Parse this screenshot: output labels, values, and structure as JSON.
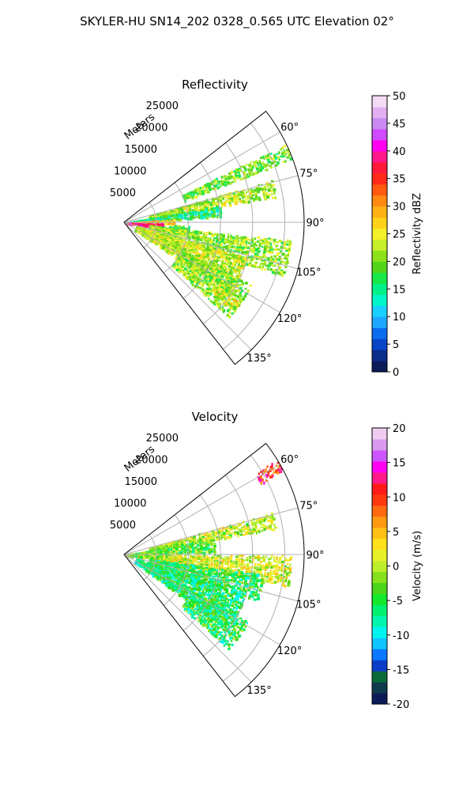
{
  "figure": {
    "title": "SKYLER-HU  SN14_202  0328_0.565 UTC Elevation 02°"
  },
  "colors": {
    "reflectivity_scale": [
      "#0b1b5a",
      "#0a2d8a",
      "#0845c8",
      "#0a6cf0",
      "#1ea7ff",
      "#19d0ff",
      "#00f5c8",
      "#00f08a",
      "#18e848",
      "#52d61a",
      "#8be21a",
      "#c6ee2a",
      "#f4f02a",
      "#ffd21a",
      "#ffb214",
      "#ff8a10",
      "#ff5a10",
      "#ff2a1a",
      "#ff1a3a",
      "#ff1a8a",
      "#ff00f0",
      "#d04aff",
      "#c98af2",
      "#e2aff0",
      "#f5dcf5"
    ],
    "velocity_scale": [
      "#0b1b5a",
      "#0e3a4a",
      "#0a6a3a",
      "#0a3cc8",
      "#0a78ff",
      "#10c4ff",
      "#00f5f0",
      "#00f5b0",
      "#00f070",
      "#14e82a",
      "#4cd41a",
      "#86e21c",
      "#bcee2a",
      "#e8f02a",
      "#ffe01a",
      "#ffc014",
      "#ff9a10",
      "#ff6a10",
      "#ff3a10",
      "#ff1a1a",
      "#ff1a8a",
      "#ff00f0",
      "#cc55ff",
      "#d99aef",
      "#f0cdf0"
    ]
  },
  "chart_data": [
    {
      "type": "heatmap",
      "subtype": "radar-ppi-sector",
      "title": "Reflectivity",
      "radial_label": "Meters",
      "radial_ticks": [
        "5000",
        "10000",
        "15000",
        "20000",
        "25000"
      ],
      "radial_tick_values": [
        5000,
        10000,
        15000,
        20000,
        25000
      ],
      "angle_ticks": [
        "60°",
        "75°",
        "90°",
        "105°",
        "120°",
        "135°"
      ],
      "angle_tick_values": [
        60,
        75,
        90,
        105,
        120,
        135
      ],
      "angle_range": [
        52,
        142
      ],
      "range_max": 28000,
      "grid": true,
      "colorbar": {
        "label": "Reflectivity dBZ",
        "min": 0,
        "max": 50,
        "ticks": [
          "0",
          "5",
          "10",
          "15",
          "20",
          "25",
          "30",
          "35",
          "40",
          "45",
          "50"
        ],
        "tick_values": [
          0,
          5,
          10,
          15,
          20,
          25,
          30,
          35,
          40,
          45,
          50
        ]
      },
      "echo_regions": [
        {
          "az": [
            64,
            69
          ],
          "range": [
            10000,
            28000
          ],
          "value": 20
        },
        {
          "az": [
            74,
            80
          ],
          "range": [
            4000,
            24000
          ],
          "value": 22
        },
        {
          "az": [
            80,
            86
          ],
          "range": [
            1000,
            15000
          ],
          "value": 16
        },
        {
          "az": [
            86,
            91
          ],
          "range": [
            500,
            8000
          ],
          "value": 28
        },
        {
          "az": [
            91,
            98
          ],
          "range": [
            0,
            6000
          ],
          "value": 38
        },
        {
          "az": [
            93,
            97
          ],
          "range": [
            7000,
            10000
          ],
          "value": 18
        },
        {
          "az": [
            96,
            108
          ],
          "range": [
            4000,
            26000
          ],
          "value": 21
        },
        {
          "az": [
            106,
            124
          ],
          "range": [
            2000,
            20000
          ],
          "value": 23
        },
        {
          "az": [
            116,
            132
          ],
          "range": [
            10000,
            22000
          ],
          "value": 21
        },
        {
          "az": [
            124,
            128
          ],
          "range": [
            17000,
            22000
          ],
          "value": 24
        }
      ]
    },
    {
      "type": "heatmap",
      "subtype": "radar-ppi-sector",
      "title": "Velocity",
      "radial_label": "Meters",
      "radial_ticks": [
        "5000",
        "10000",
        "15000",
        "20000",
        "25000"
      ],
      "radial_tick_values": [
        5000,
        10000,
        15000,
        20000,
        25000
      ],
      "angle_ticks": [
        "60°",
        "75°",
        "90°",
        "105°",
        "120°",
        "135°"
      ],
      "angle_tick_values": [
        60,
        75,
        90,
        105,
        120,
        135
      ],
      "angle_range": [
        52,
        142
      ],
      "range_max": 28000,
      "grid": true,
      "colorbar": {
        "label": "Velocity (m/s)",
        "min": -20,
        "max": 20,
        "ticks": [
          "-20",
          "-15",
          "-10",
          "-5",
          "0",
          "5",
          "10",
          "15",
          "20"
        ],
        "tick_values": [
          -20,
          -15,
          -10,
          -5,
          0,
          5,
          10,
          15,
          20
        ]
      },
      "echo_regions": [
        {
          "az": [
            58,
            62
          ],
          "range": [
            24000,
            28000
          ],
          "value": 10
        },
        {
          "az": [
            74,
            80
          ],
          "range": [
            4000,
            24000
          ],
          "value": 0
        },
        {
          "az": [
            80,
            88
          ],
          "range": [
            500,
            14000
          ],
          "value": -3
        },
        {
          "az": [
            86,
            96
          ],
          "range": [
            0,
            6000
          ],
          "value": -2
        },
        {
          "az": [
            90,
            100
          ],
          "range": [
            6000,
            26000
          ],
          "value": 1
        },
        {
          "az": [
            98,
            108
          ],
          "range": [
            4000,
            22000
          ],
          "value": -5
        },
        {
          "az": [
            108,
            126
          ],
          "range": [
            2000,
            20000
          ],
          "value": -6
        },
        {
          "az": [
            118,
            132
          ],
          "range": [
            12000,
            22000
          ],
          "value": -5
        }
      ]
    }
  ]
}
